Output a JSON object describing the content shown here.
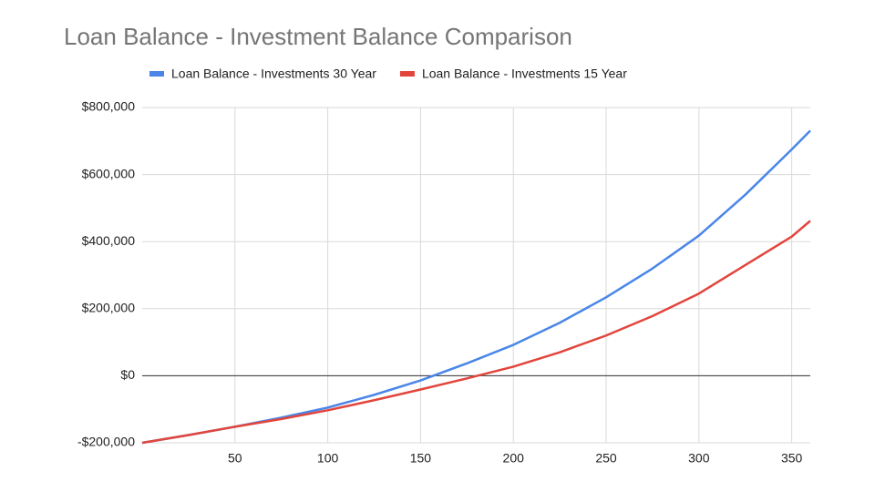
{
  "chart_data": {
    "type": "line",
    "title": "Loan Balance - Investment Balance Comparison",
    "x": [
      0,
      25,
      50,
      75,
      100,
      125,
      150,
      175,
      200,
      225,
      250,
      275,
      300,
      325,
      350,
      360
    ],
    "series": [
      {
        "name": "Loan Balance - Investments 30 Year",
        "color": "#4a86e8",
        "values": [
          -200000,
          -177000,
          -152000,
          -125000,
          -95000,
          -57000,
          -14000,
          37000,
          92000,
          158000,
          234000,
          320000,
          418000,
          540000,
          675000,
          731000
        ]
      },
      {
        "name": "Loan Balance - Investments 15 Year",
        "color": "#e2453c",
        "values": [
          -200000,
          -177000,
          -152000,
          -129000,
          -103000,
          -73000,
          -41000,
          -8000,
          27000,
          70000,
          120000,
          178000,
          245000,
          330000,
          415000,
          462000
        ]
      }
    ],
    "xlim": [
      0,
      360
    ],
    "xticks": [
      50,
      100,
      150,
      200,
      250,
      300,
      350
    ],
    "ylim": [
      -200000,
      800000
    ],
    "yticks": [
      {
        "value": -200000,
        "label": "-$200,000"
      },
      {
        "value": 0,
        "label": "$0"
      },
      {
        "value": 200000,
        "label": "$200,000"
      },
      {
        "value": 400000,
        "label": "$400,000"
      },
      {
        "value": 600000,
        "label": "$600,000"
      },
      {
        "value": 800000,
        "label": "$800,000"
      }
    ],
    "grid": true,
    "legend": "top"
  }
}
